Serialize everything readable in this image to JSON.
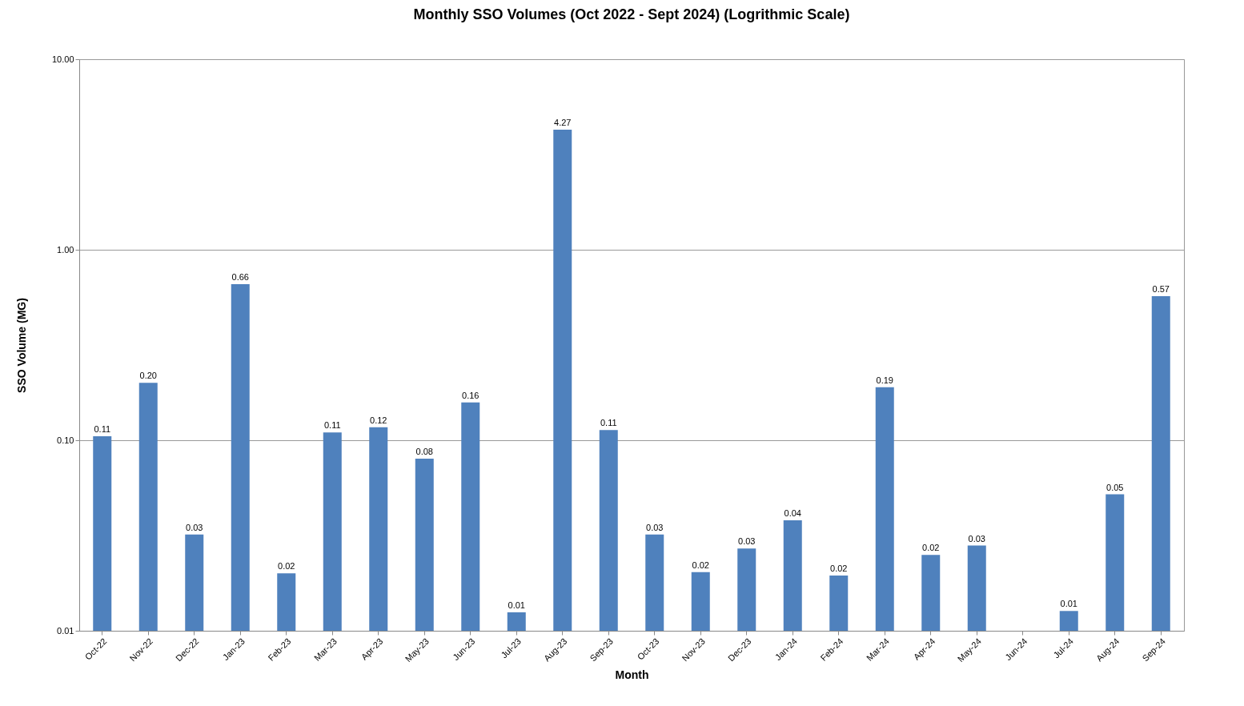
{
  "chart_data": {
    "type": "bar",
    "title": "Monthly SSO Volumes (Oct 2022  - Sept 2024) (Logrithmic Scale)",
    "xlabel": "Month",
    "ylabel": "SSO Volume (MG)",
    "categories": [
      "Oct-22",
      "Nov-22",
      "Dec-22",
      "Jan-23",
      "Feb-23",
      "Mar-23",
      "Apr-23",
      "May-23",
      "Jun-23",
      "Jul-23",
      "Aug-23",
      "Sep-23",
      "Oct-23",
      "Nov-23",
      "Dec-23",
      "Jan-24",
      "Feb-24",
      "Mar-24",
      "Apr-24",
      "May-24",
      "Jun-24",
      "Jul-24",
      "Aug-24",
      "Sep-24"
    ],
    "values": [
      0.105,
      0.2,
      0.032,
      0.66,
      0.02,
      0.11,
      0.117,
      0.08,
      0.158,
      0.0125,
      4.27,
      0.113,
      0.032,
      0.0203,
      0.027,
      0.038,
      0.0195,
      0.19,
      0.025,
      0.028,
      null,
      0.0127,
      0.052,
      0.57
    ],
    "value_labels": [
      "0.11",
      "0.20",
      "0.03",
      "0.66",
      "0.02",
      "0.11",
      "0.12",
      "0.08",
      "0.16",
      "0.01",
      "4.27",
      "0.11",
      "0.03",
      "0.02",
      "0.03",
      "0.04",
      "0.02",
      "0.19",
      "0.02",
      "0.03",
      null,
      "0.01",
      "0.05",
      "0.57"
    ],
    "color": "#4f81bd",
    "log": true,
    "ylim": [
      0.01,
      10
    ],
    "yticks": [
      {
        "value": 0.01,
        "label": "0.01"
      },
      {
        "value": 0.1,
        "label": "0.10"
      },
      {
        "value": 1,
        "label": "1.00"
      },
      {
        "value": 10,
        "label": "10.00"
      }
    ],
    "grid": "y"
  }
}
